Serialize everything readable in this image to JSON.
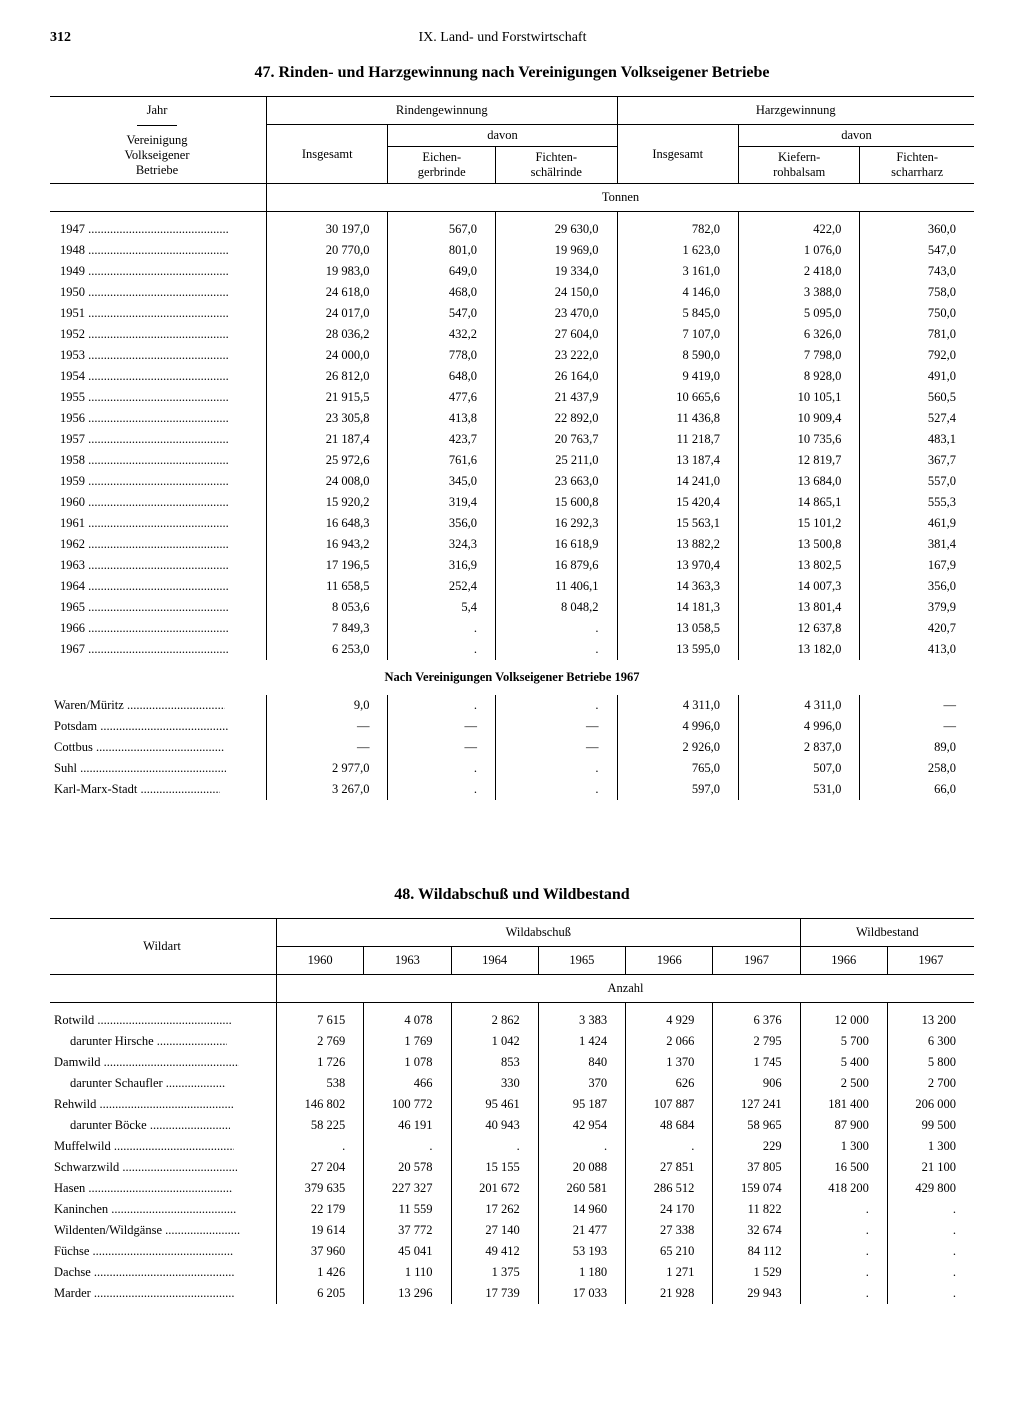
{
  "page": {
    "number": "312",
    "section": "IX. Land- und Forstwirtschaft"
  },
  "table47": {
    "title": "47. Rinden- und Harzgewinnung nach Vereinigungen Volkseigener Betriebe",
    "head": {
      "col1_a": "Jahr",
      "col1_b": "Vereinigung",
      "col1_c": "Volkseigener",
      "col1_d": "Betriebe",
      "rinden": "Rindengewinnung",
      "harz": "Harzgewinnung",
      "insgesamt": "Insgesamt",
      "davon": "davon",
      "eichen": "Eichen-\ngerbrinde",
      "fichtenschael": "Fichten-\nschälrinde",
      "kiefern": "Kiefern-\nrohbalsam",
      "fichtenscharr": "Fichten-\nscharrharz",
      "unit": "Tonnen"
    },
    "rows": [
      {
        "y": "1947",
        "a": "30 197,0",
        "b": "567,0",
        "c": "29 630,0",
        "d": "782,0",
        "e": "422,0",
        "f": "360,0"
      },
      {
        "y": "1948",
        "a": "20 770,0",
        "b": "801,0",
        "c": "19 969,0",
        "d": "1 623,0",
        "e": "1 076,0",
        "f": "547,0"
      },
      {
        "y": "1949",
        "a": "19 983,0",
        "b": "649,0",
        "c": "19 334,0",
        "d": "3 161,0",
        "e": "2 418,0",
        "f": "743,0"
      },
      {
        "y": "1950",
        "a": "24 618,0",
        "b": "468,0",
        "c": "24 150,0",
        "d": "4 146,0",
        "e": "3 388,0",
        "f": "758,0"
      },
      {
        "y": "1951",
        "a": "24 017,0",
        "b": "547,0",
        "c": "23 470,0",
        "d": "5 845,0",
        "e": "5 095,0",
        "f": "750,0"
      },
      {
        "y": "1952",
        "a": "28 036,2",
        "b": "432,2",
        "c": "27 604,0",
        "d": "7 107,0",
        "e": "6 326,0",
        "f": "781,0"
      },
      {
        "y": "1953",
        "a": "24 000,0",
        "b": "778,0",
        "c": "23 222,0",
        "d": "8 590,0",
        "e": "7 798,0",
        "f": "792,0"
      },
      {
        "y": "1954",
        "a": "26 812,0",
        "b": "648,0",
        "c": "26 164,0",
        "d": "9 419,0",
        "e": "8 928,0",
        "f": "491,0"
      },
      {
        "y": "1955",
        "a": "21 915,5",
        "b": "477,6",
        "c": "21 437,9",
        "d": "10 665,6",
        "e": "10 105,1",
        "f": "560,5"
      },
      {
        "y": "1956",
        "a": "23 305,8",
        "b": "413,8",
        "c": "22 892,0",
        "d": "11 436,8",
        "e": "10 909,4",
        "f": "527,4"
      },
      {
        "y": "1957",
        "a": "21 187,4",
        "b": "423,7",
        "c": "20 763,7",
        "d": "11 218,7",
        "e": "10 735,6",
        "f": "483,1"
      },
      {
        "y": "1958",
        "a": "25 972,6",
        "b": "761,6",
        "c": "25 211,0",
        "d": "13 187,4",
        "e": "12 819,7",
        "f": "367,7"
      },
      {
        "y": "1959",
        "a": "24 008,0",
        "b": "345,0",
        "c": "23 663,0",
        "d": "14 241,0",
        "e": "13 684,0",
        "f": "557,0"
      },
      {
        "y": "1960",
        "a": "15 920,2",
        "b": "319,4",
        "c": "15 600,8",
        "d": "15 420,4",
        "e": "14 865,1",
        "f": "555,3"
      },
      {
        "y": "1961",
        "a": "16 648,3",
        "b": "356,0",
        "c": "16 292,3",
        "d": "15 563,1",
        "e": "15 101,2",
        "f": "461,9"
      },
      {
        "y": "1962",
        "a": "16 943,2",
        "b": "324,3",
        "c": "16 618,9",
        "d": "13 882,2",
        "e": "13 500,8",
        "f": "381,4"
      },
      {
        "y": "1963",
        "a": "17 196,5",
        "b": "316,9",
        "c": "16 879,6",
        "d": "13 970,4",
        "e": "13 802,5",
        "f": "167,9"
      },
      {
        "y": "1964",
        "a": "11 658,5",
        "b": "252,4",
        "c": "11 406,1",
        "d": "14 363,3",
        "e": "14 007,3",
        "f": "356,0"
      },
      {
        "y": "1965",
        "a": "8 053,6",
        "b": "5,4",
        "c": "8 048,2",
        "d": "14 181,3",
        "e": "13 801,4",
        "f": "379,9"
      },
      {
        "y": "1966",
        "a": "7 849,3",
        "b": ".",
        "c": ".",
        "d": "13 058,5",
        "e": "12 637,8",
        "f": "420,7"
      },
      {
        "y": "1967",
        "a": "6 253,0",
        "b": ".",
        "c": ".",
        "d": "13 595,0",
        "e": "13 182,0",
        "f": "413,0"
      }
    ],
    "section2_title": "Nach Vereinigungen Volkseigener Betriebe 1967",
    "rows2": [
      {
        "y": "Waren/Müritz",
        "a": "9,0",
        "b": ".",
        "c": ".",
        "d": "4 311,0",
        "e": "4 311,0",
        "f": "—"
      },
      {
        "y": "Potsdam",
        "a": "—",
        "b": "—",
        "c": "—",
        "d": "4 996,0",
        "e": "4 996,0",
        "f": "—"
      },
      {
        "y": "Cottbus",
        "a": "—",
        "b": "—",
        "c": "—",
        "d": "2 926,0",
        "e": "2 837,0",
        "f": "89,0"
      },
      {
        "y": "Suhl",
        "a": "2 977,0",
        "b": ".",
        "c": ".",
        "d": "765,0",
        "e": "507,0",
        "f": "258,0"
      },
      {
        "y": "Karl-Marx-Stadt",
        "a": "3 267,0",
        "b": ".",
        "c": ".",
        "d": "597,0",
        "e": "531,0",
        "f": "66,0"
      }
    ]
  },
  "table48": {
    "title": "48. Wildabschuß und Wildbestand",
    "head": {
      "wildart": "Wildart",
      "abschuss": "Wildabschuß",
      "bestand": "Wildbestand",
      "y1960": "1960",
      "y1963": "1963",
      "y1964": "1964",
      "y1965": "1965",
      "y1966": "1966",
      "y1967": "1967",
      "b1966": "1966",
      "b1967": "1967",
      "unit": "Anzahl"
    },
    "rows": [
      {
        "n": "Rotwild",
        "a": "7 615",
        "b": "4 078",
        "c": "2 862",
        "d": "3 383",
        "e": "4 929",
        "f": "6 376",
        "g": "12 000",
        "h": "13 200"
      },
      {
        "n": "darunter Hirsche",
        "indent": true,
        "a": "2 769",
        "b": "1 769",
        "c": "1 042",
        "d": "1 424",
        "e": "2 066",
        "f": "2 795",
        "g": "5 700",
        "h": "6 300"
      },
      {
        "n": "Damwild",
        "a": "1 726",
        "b": "1 078",
        "c": "853",
        "d": "840",
        "e": "1 370",
        "f": "1 745",
        "g": "5 400",
        "h": "5 800"
      },
      {
        "n": "darunter Schaufler",
        "indent": true,
        "a": "538",
        "b": "466",
        "c": "330",
        "d": "370",
        "e": "626",
        "f": "906",
        "g": "2 500",
        "h": "2 700"
      },
      {
        "n": "Rehwild",
        "a": "146 802",
        "b": "100 772",
        "c": "95 461",
        "d": "95 187",
        "e": "107 887",
        "f": "127 241",
        "g": "181 400",
        "h": "206 000"
      },
      {
        "n": "darunter Böcke",
        "indent": true,
        "a": "58 225",
        "b": "46 191",
        "c": "40 943",
        "d": "42 954",
        "e": "48 684",
        "f": "58 965",
        "g": "87 900",
        "h": "99 500"
      },
      {
        "n": "Muffelwild",
        "a": ".",
        "b": ".",
        "c": ".",
        "d": ".",
        "e": ".",
        "f": "229",
        "g": "1 300",
        "h": "1 300"
      },
      {
        "n": "Schwarzwild",
        "a": "27 204",
        "b": "20 578",
        "c": "15 155",
        "d": "20 088",
        "e": "27 851",
        "f": "37 805",
        "g": "16 500",
        "h": "21 100"
      },
      {
        "n": "Hasen",
        "a": "379 635",
        "b": "227 327",
        "c": "201 672",
        "d": "260 581",
        "e": "286 512",
        "f": "159 074",
        "g": "418 200",
        "h": "429 800"
      },
      {
        "n": "Kaninchen",
        "a": "22 179",
        "b": "11 559",
        "c": "17 262",
        "d": "14 960",
        "e": "24 170",
        "f": "11 822",
        "g": ".",
        "h": "."
      },
      {
        "n": "Wildenten/Wildgänse",
        "a": "19 614",
        "b": "37 772",
        "c": "27 140",
        "d": "21 477",
        "e": "27 338",
        "f": "32 674",
        "g": ".",
        "h": "."
      },
      {
        "n": "Füchse",
        "a": "37 960",
        "b": "45 041",
        "c": "49 412",
        "d": "53 193",
        "e": "65 210",
        "f": "84 112",
        "g": ".",
        "h": "."
      },
      {
        "n": "Dachse",
        "a": "1 426",
        "b": "1 110",
        "c": "1 375",
        "d": "1 180",
        "e": "1 271",
        "f": "1 529",
        "g": ".",
        "h": "."
      },
      {
        "n": "Marder",
        "a": "6 205",
        "b": "13 296",
        "c": "17 739",
        "d": "17 033",
        "e": "21 928",
        "f": "29 943",
        "g": ".",
        "h": "."
      }
    ]
  }
}
